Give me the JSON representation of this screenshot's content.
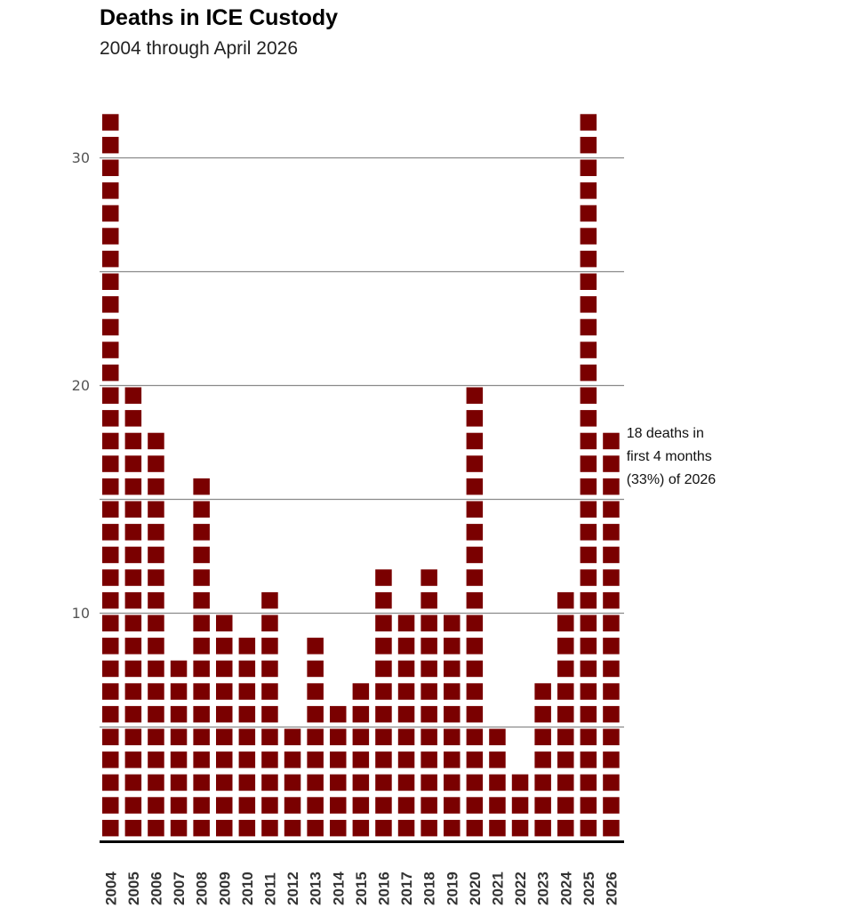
{
  "chart_data": {
    "type": "bar",
    "title": "Deaths in ICE Custody",
    "subtitle": "2004 through April 2026",
    "categories": [
      "2004",
      "2005",
      "2006",
      "2007",
      "2008",
      "2009",
      "2010",
      "2011",
      "2012",
      "2013",
      "2014",
      "2015",
      "2016",
      "2017",
      "2018",
      "2019",
      "2020",
      "2021",
      "2022",
      "2023",
      "2024",
      "2025",
      "2026"
    ],
    "values": [
      32,
      20,
      18,
      8,
      16,
      10,
      9,
      11,
      5,
      9,
      6,
      7,
      12,
      10,
      12,
      10,
      20,
      5,
      3,
      7,
      11,
      32,
      18
    ],
    "yticks": [
      10,
      20,
      30
    ],
    "gridlines": [
      5,
      10,
      15,
      20,
      25,
      30
    ],
    "ylim": [
      0,
      32
    ],
    "colors": {
      "bar": "#7a0000",
      "grid": "#8a8a8a",
      "baseline": "#000000"
    },
    "annotation": {
      "category": "2026",
      "lines": [
        "18 deaths in",
        "first 4 months",
        "(33%) of 2026"
      ]
    }
  }
}
